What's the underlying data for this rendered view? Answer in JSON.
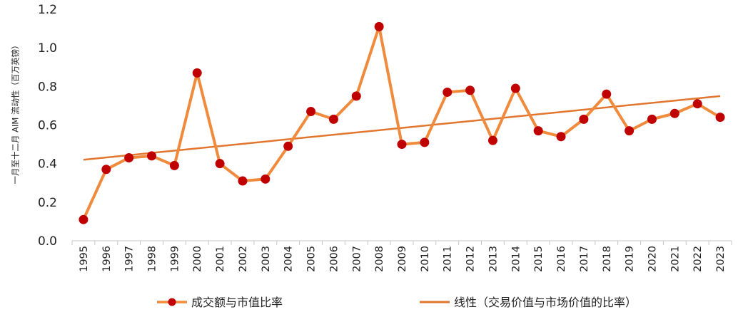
{
  "chart_data": {
    "type": "line",
    "title": "",
    "xlabel": "",
    "ylabel": "一月至十二月 AIM 流动性（百万英镑）",
    "ylim": [
      0,
      1.2
    ],
    "yticks": [
      "0.0",
      "0.2",
      "0.4",
      "0.6",
      "0.8",
      "1.0",
      "1.2"
    ],
    "grid": false,
    "legend_position": "bottom",
    "categories": [
      "1995",
      "1996",
      "1997",
      "1998",
      "1999",
      "2000",
      "2001",
      "2002",
      "2003",
      "2004",
      "2005",
      "2006",
      "2007",
      "2008",
      "2009",
      "2010",
      "2011",
      "2012",
      "2013",
      "2014",
      "2015",
      "2016",
      "2017",
      "2018",
      "2019",
      "2020",
      "2021",
      "2022",
      "2023"
    ],
    "series": [
      {
        "name": "成交额与市值比率",
        "color": "#F08A3C",
        "marker_color": "#C00000",
        "values": [
          0.11,
          0.37,
          0.43,
          0.44,
          0.39,
          0.87,
          0.4,
          0.31,
          0.32,
          0.49,
          0.67,
          0.63,
          0.75,
          1.11,
          0.5,
          0.51,
          0.77,
          0.78,
          0.52,
          0.79,
          0.57,
          0.54,
          0.63,
          0.76,
          0.57,
          0.63,
          0.66,
          0.71,
          0.64
        ]
      },
      {
        "name": "线性（交易价值与市场价值的比率）",
        "color": "#E2762F",
        "type": "trendline",
        "start_value": 0.42,
        "end_value": 0.75
      }
    ]
  }
}
